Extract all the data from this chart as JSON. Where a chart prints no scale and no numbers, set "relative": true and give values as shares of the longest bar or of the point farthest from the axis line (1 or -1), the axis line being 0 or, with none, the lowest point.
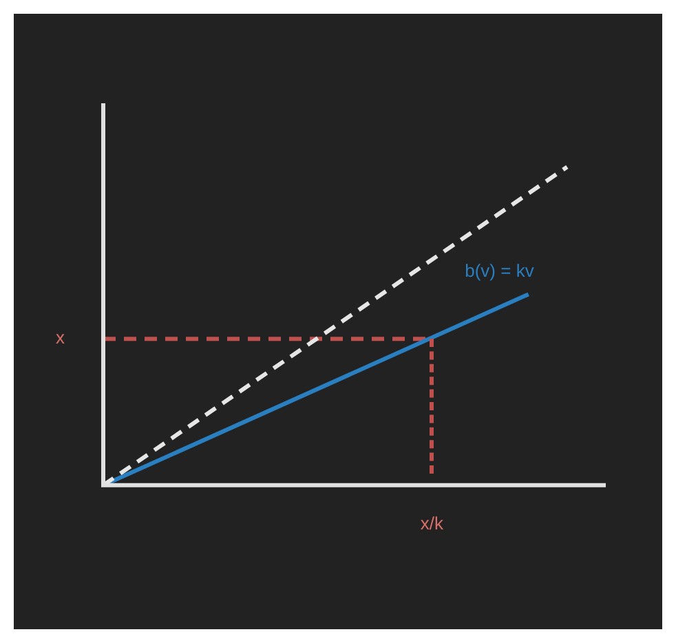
{
  "chart_data": {
    "type": "line",
    "relative": true,
    "marker": "none",
    "categories": [
      null,
      null,
      null,
      null,
      null,
      null,
      null,
      null,
      null,
      null,
      null,
      null,
      null,
      null,
      null,
      null,
      null,
      null,
      null,
      null,
      null,
      null,
      null,
      null,
      null,
      null,
      null
    ],
    "series": [
      {
        "color": "#e6e6e6",
        "line_style": "dashed",
        "values": [
          0,
          null,
          null,
          null,
          null,
          null,
          null,
          null,
          null,
          null,
          null,
          null,
          null,
          null,
          null,
          null,
          null,
          null,
          null,
          null,
          null,
          null,
          null,
          null,
          1,
          null,
          null
        ]
      },
      {
        "name": "b(v) = kv",
        "color": "#2a7fc0",
        "line_style": "solid",
        "values": [
          0,
          null,
          null,
          null,
          null,
          null,
          null,
          null,
          null,
          null,
          null,
          null,
          null,
          null,
          null,
          null,
          null,
          null,
          null,
          null,
          null,
          null,
          0.6,
          null,
          null,
          null,
          null
        ]
      },
      {
        "color": "#c0504d",
        "line_style": "dashed",
        "values": [
          0.46,
          null,
          null,
          null,
          null,
          null,
          null,
          null,
          null,
          null,
          null,
          null,
          null,
          null,
          null,
          null,
          null,
          0.46,
          null,
          null,
          null,
          null,
          null,
          null,
          null,
          null,
          null
        ]
      }
    ],
    "annotations": [
      "x",
      "x/k"
    ]
  }
}
